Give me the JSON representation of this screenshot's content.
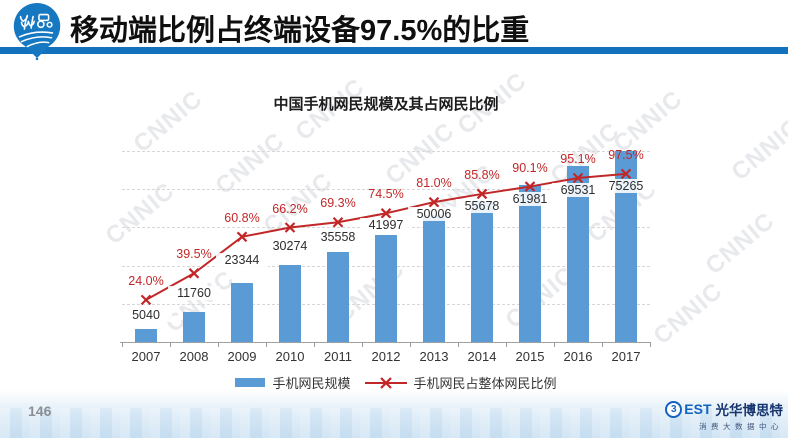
{
  "header": {
    "title": "移动端比例占终端设备97.5%的比重"
  },
  "page_number": "146",
  "watermark": "CNNIC",
  "footer_logo": {
    "b_glyph": "3",
    "est": "EST",
    "name": "光华博思特",
    "subtitle": "消费大数据中心"
  },
  "colors": {
    "header_bar": "#1272be",
    "bar": "#5B9BD5",
    "line": "#c22728",
    "pct_label": "#c22728"
  },
  "chart_data": {
    "type": "bar",
    "title": "中国手机网民规模及其占网民比例",
    "categories": [
      "2007",
      "2008",
      "2009",
      "2010",
      "2011",
      "2012",
      "2013",
      "2014",
      "2015",
      "2016",
      "2017"
    ],
    "series": [
      {
        "name": "手机网民规模",
        "type": "bar",
        "color": "#5B9BD5",
        "values": [
          5040,
          11760,
          23344,
          30274,
          35558,
          41997,
          50006,
          55678,
          61981,
          69531,
          75265
        ]
      },
      {
        "name": "手机网民占整体网民比例",
        "type": "line",
        "color": "#c22728",
        "unit": "%",
        "values": [
          24.0,
          39.5,
          60.8,
          66.2,
          69.3,
          74.5,
          81.0,
          85.8,
          90.1,
          95.1,
          97.5
        ]
      }
    ],
    "grid": true,
    "legend_position": "bottom",
    "value_axis_max": 75265,
    "percent_axis_range": [
      0,
      110
    ]
  }
}
